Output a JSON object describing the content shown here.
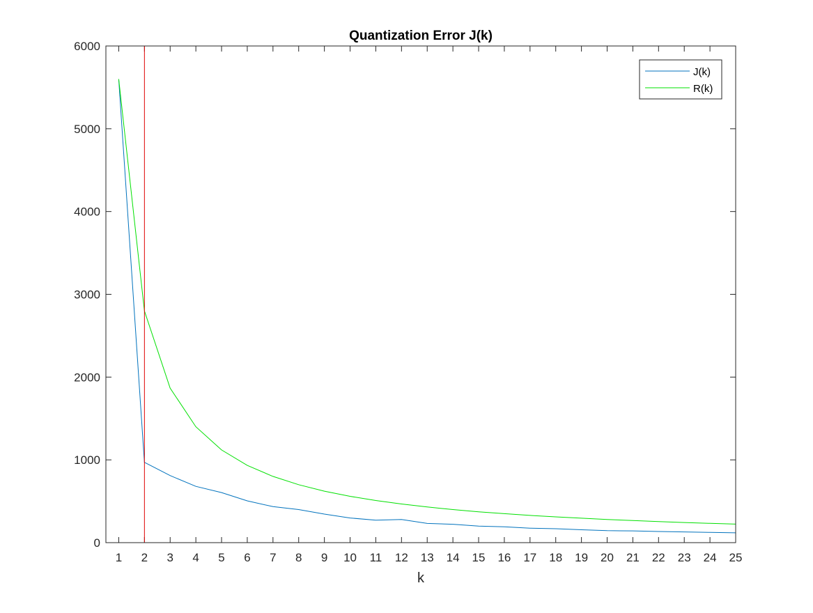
{
  "chart_data": {
    "type": "line",
    "title": "Quantization Error J(k)",
    "xlabel": "k",
    "ylabel": "",
    "xlim": [
      0.5,
      25
    ],
    "ylim": [
      0,
      6000
    ],
    "xticks": [
      1,
      2,
      3,
      4,
      5,
      6,
      7,
      8,
      9,
      10,
      11,
      12,
      13,
      14,
      15,
      16,
      17,
      18,
      19,
      20,
      21,
      22,
      23,
      24,
      25
    ],
    "yticks": [
      0,
      1000,
      2000,
      3000,
      4000,
      5000,
      6000
    ],
    "grid": false,
    "legend_position": "top-right",
    "x": [
      1,
      2,
      3,
      4,
      5,
      6,
      7,
      8,
      9,
      10,
      11,
      12,
      13,
      14,
      15,
      16,
      17,
      18,
      19,
      20,
      21,
      22,
      23,
      24,
      25
    ],
    "series": [
      {
        "name": "J(k)",
        "color": "#0072bd",
        "values": [
          5600,
          970,
          810,
          680,
          605,
          505,
          435,
          400,
          345,
          298,
          272,
          280,
          232,
          222,
          200,
          192,
          175,
          168,
          156,
          145,
          142,
          135,
          130,
          124,
          119
        ]
      },
      {
        "name": "R(k)",
        "color": "#00e000",
        "values": [
          5600,
          2800,
          1867,
          1400,
          1120,
          933,
          800,
          700,
          622,
          560,
          509,
          467,
          431,
          400,
          373,
          350,
          329,
          311,
          295,
          280,
          267,
          255,
          243,
          233,
          224
        ]
      }
    ],
    "vertical_line": {
      "x": 2,
      "color": "#e00000"
    }
  }
}
